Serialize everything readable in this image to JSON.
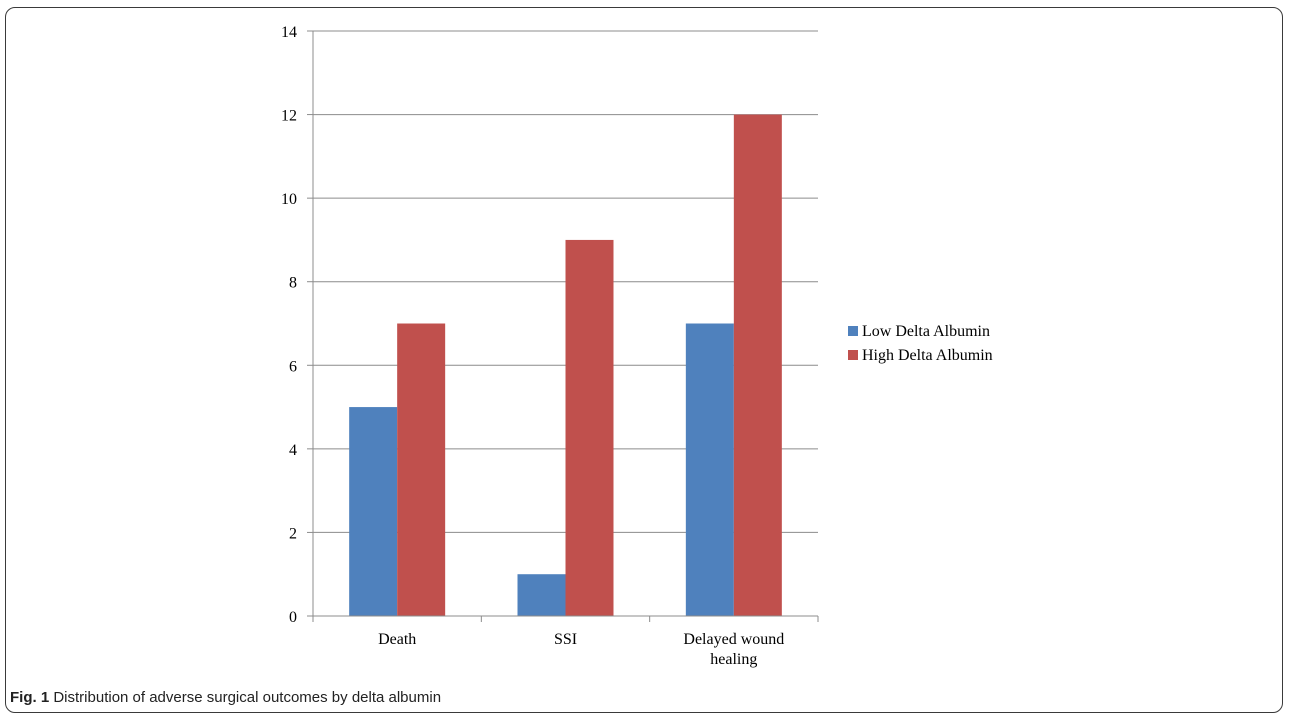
{
  "figure": {
    "label": "Fig. 1",
    "caption": "Distribution of adverse surgical outcomes by delta albumin"
  },
  "chart_data": {
    "type": "bar",
    "categories": [
      "Death",
      "SSI",
      "Delayed wound healing"
    ],
    "category_lines": [
      [
        "Death"
      ],
      [
        "SSI"
      ],
      [
        "Delayed wound",
        "healing"
      ]
    ],
    "series": [
      {
        "name": "Low Delta Albumin",
        "color": "#4F81BD",
        "values": [
          5,
          1,
          7
        ]
      },
      {
        "name": "High Delta Albumin",
        "color": "#C0504D",
        "values": [
          7,
          9,
          12
        ]
      }
    ],
    "ylim": [
      0,
      14
    ],
    "yticks": [
      0,
      2,
      4,
      6,
      8,
      10,
      12,
      14
    ],
    "grid": true,
    "legend": "right"
  }
}
